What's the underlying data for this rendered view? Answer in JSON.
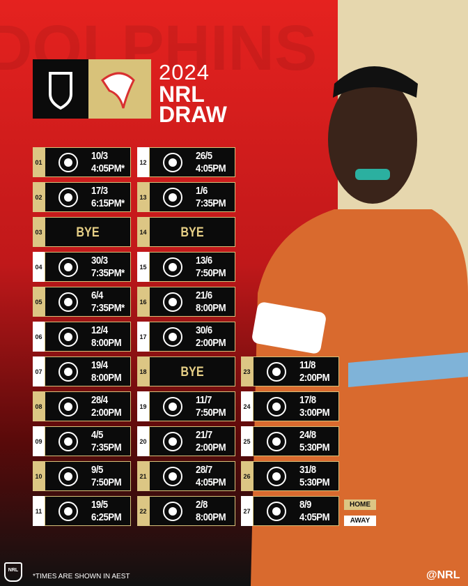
{
  "header": {
    "year": "2024",
    "line1": "NRL",
    "line2": "DRAW",
    "background_word": "DOLPHINS"
  },
  "home_color": "#dcc684",
  "away_color": "#ffffff",
  "rounds": [
    {
      "round": "01",
      "date": "10/3",
      "time": "4:05PM*",
      "color": "#dcc684"
    },
    {
      "round": "02",
      "date": "17/3",
      "time": "6:15PM*",
      "color": "#dcc684"
    },
    {
      "round": "03",
      "bye": "BYE",
      "color": "#dcc684"
    },
    {
      "round": "04",
      "date": "30/3",
      "time": "7:35PM*",
      "color": "#ffffff"
    },
    {
      "round": "05",
      "date": "6/4",
      "time": "7:35PM*",
      "color": "#dcc684"
    },
    {
      "round": "06",
      "date": "12/4",
      "time": "8:00PM",
      "color": "#ffffff"
    },
    {
      "round": "07",
      "date": "19/4",
      "time": "8:00PM",
      "color": "#ffffff"
    },
    {
      "round": "08",
      "date": "28/4",
      "time": "2:00PM",
      "color": "#dcc684"
    },
    {
      "round": "09",
      "date": "4/5",
      "time": "7:35PM",
      "color": "#ffffff"
    },
    {
      "round": "10",
      "date": "9/5",
      "time": "7:50PM",
      "color": "#dcc684"
    },
    {
      "round": "11",
      "date": "19/5",
      "time": "6:25PM",
      "color": "#ffffff"
    },
    {
      "round": "12",
      "date": "26/5",
      "time": "4:05PM",
      "color": "#ffffff"
    },
    {
      "round": "13",
      "date": "1/6",
      "time": "7:35PM",
      "color": "#dcc684"
    },
    {
      "round": "14",
      "bye": "BYE",
      "color": "#dcc684"
    },
    {
      "round": "15",
      "date": "13/6",
      "time": "7:50PM",
      "color": "#ffffff"
    },
    {
      "round": "16",
      "date": "21/6",
      "time": "8:00PM",
      "color": "#dcc684"
    },
    {
      "round": "17",
      "date": "30/6",
      "time": "2:00PM",
      "color": "#ffffff"
    },
    {
      "round": "18",
      "bye": "BYE",
      "color": "#dcc684"
    },
    {
      "round": "19",
      "date": "11/7",
      "time": "7:50PM",
      "color": "#ffffff"
    },
    {
      "round": "20",
      "date": "21/7",
      "time": "2:00PM",
      "color": "#ffffff"
    },
    {
      "round": "21",
      "date": "28/7",
      "time": "4:05PM",
      "color": "#dcc684"
    },
    {
      "round": "22",
      "date": "2/8",
      "time": "8:00PM",
      "color": "#dcc684"
    },
    {
      "round": "23",
      "date": "11/8",
      "time": "2:00PM",
      "color": "#dcc684"
    },
    {
      "round": "24",
      "date": "17/8",
      "time": "3:00PM",
      "color": "#ffffff"
    },
    {
      "round": "25",
      "date": "24/8",
      "time": "5:30PM",
      "color": "#ffffff"
    },
    {
      "round": "26",
      "date": "31/8",
      "time": "5:30PM",
      "color": "#dcc684"
    },
    {
      "round": "27",
      "date": "8/9",
      "time": "4:05PM",
      "color": "#ffffff"
    }
  ],
  "legend": {
    "home": "HOME",
    "away": "AWAY"
  },
  "footer": {
    "logo": "NRL",
    "note": "*TIMES ARE SHOWN IN AEST",
    "handle": "@NRL"
  }
}
